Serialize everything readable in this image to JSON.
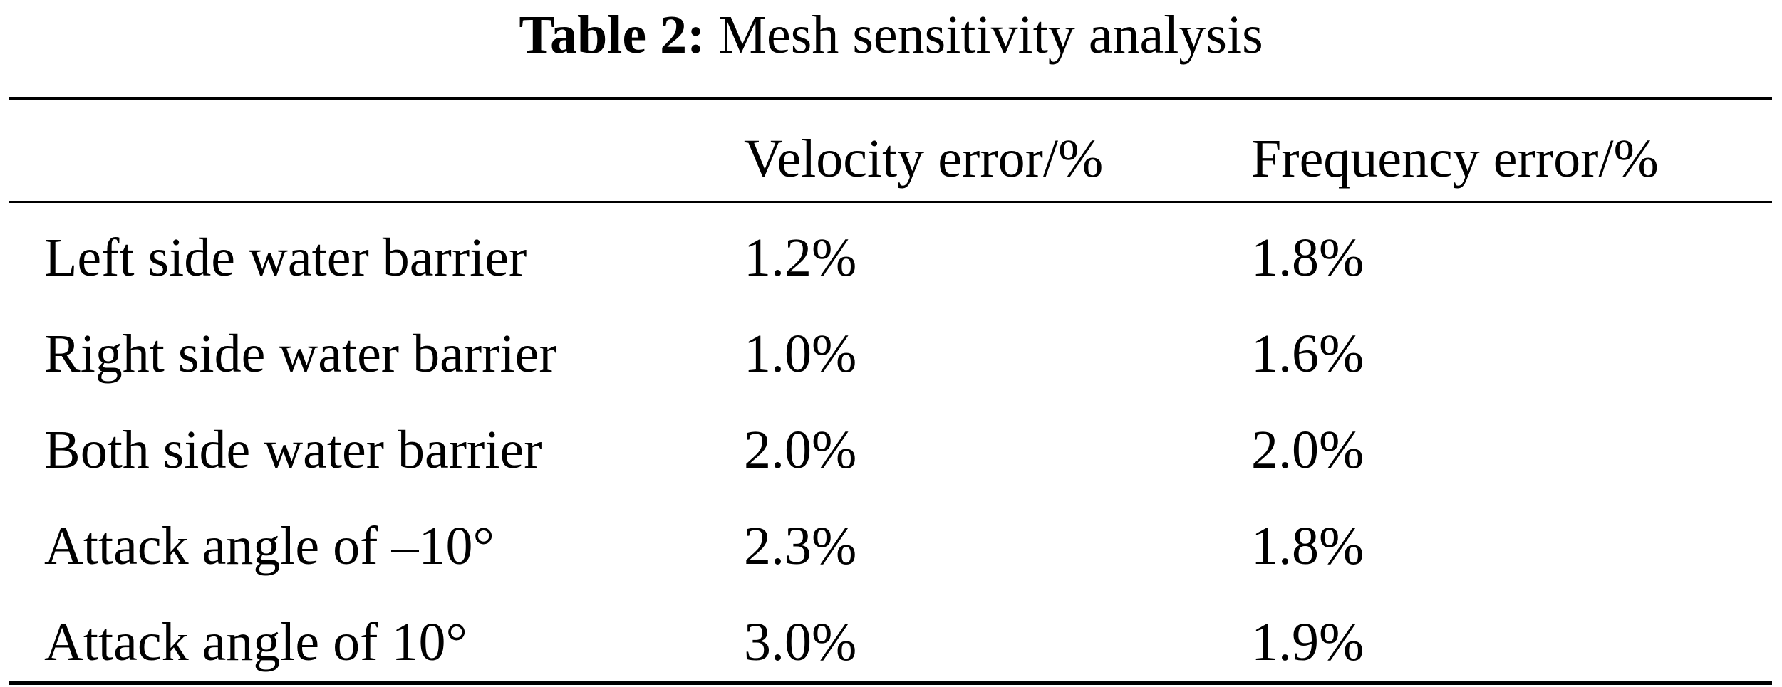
{
  "caption": {
    "label": "Table 2:",
    "title": "Mesh sensitivity analysis"
  },
  "table": {
    "headers": [
      "",
      "Velocity error/%",
      "Frequency error/%"
    ],
    "rows": [
      {
        "label": "Left side water barrier",
        "velocity_error": "1.2%",
        "frequency_error": "1.8%"
      },
      {
        "label": "Right side water barrier",
        "velocity_error": "1.0%",
        "frequency_error": "1.6%"
      },
      {
        "label": "Both side water barrier",
        "velocity_error": "2.0%",
        "frequency_error": "2.0%"
      },
      {
        "label": "Attack angle of –10°",
        "velocity_error": "2.3%",
        "frequency_error": "1.8%"
      },
      {
        "label": "Attack angle of 10°",
        "velocity_error": "3.0%",
        "frequency_error": "1.9%"
      }
    ]
  }
}
